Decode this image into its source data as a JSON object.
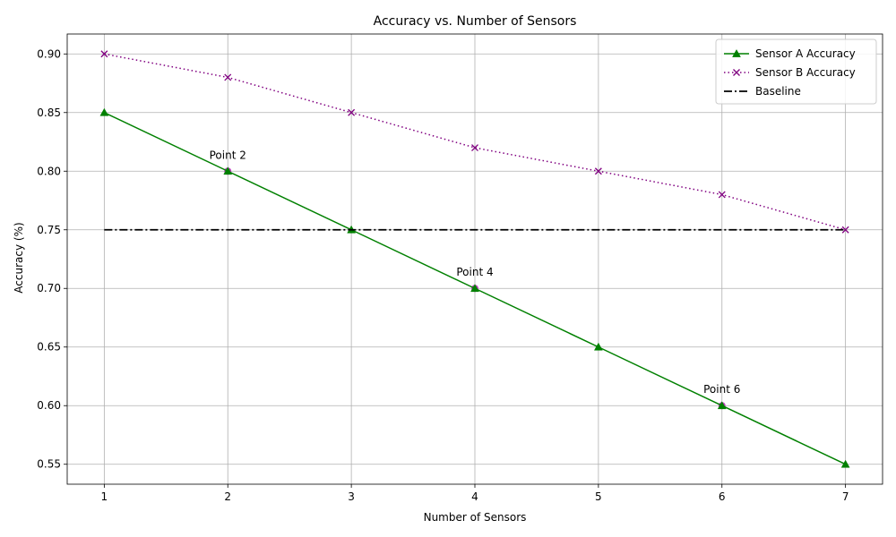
{
  "chart_data": {
    "type": "line",
    "title": "Accuracy vs. Number of Sensors",
    "xlabel": "Number of Sensors",
    "ylabel": "Accuracy (%)",
    "x": [
      1,
      2,
      3,
      4,
      5,
      6,
      7
    ],
    "xlim": [
      0.7,
      7.3
    ],
    "ylim": [
      0.533,
      0.917
    ],
    "xticks": [
      1,
      2,
      3,
      4,
      5,
      6,
      7
    ],
    "yticks": [
      0.55,
      0.6,
      0.65,
      0.7,
      0.75,
      0.8,
      0.85,
      0.9
    ],
    "ytick_labels": [
      "0.55",
      "0.60",
      "0.65",
      "0.70",
      "0.75",
      "0.80",
      "0.85",
      "0.90"
    ],
    "grid": true,
    "legend_position": "top-right",
    "series": [
      {
        "name": "Sensor A Accuracy",
        "values": [
          0.85,
          0.8,
          0.75,
          0.7,
          0.65,
          0.6,
          0.55
        ],
        "color": "#008000",
        "linestyle": "solid",
        "marker": "triangle-up"
      },
      {
        "name": "Sensor B Accuracy",
        "values": [
          0.9,
          0.88,
          0.85,
          0.82,
          0.8,
          0.78,
          0.75
        ],
        "color": "#800080",
        "linestyle": "dotted",
        "marker": "x"
      },
      {
        "name": "Baseline",
        "values": [
          0.75,
          0.75,
          0.75,
          0.75,
          0.75,
          0.75,
          0.75
        ],
        "color": "#000000",
        "linestyle": "dashdot",
        "marker": "none"
      }
    ],
    "highlight_points": [
      {
        "x": 2,
        "y": 0.8,
        "color": "#bf3fbf"
      },
      {
        "x": 4,
        "y": 0.7,
        "color": "#bf3fbf"
      },
      {
        "x": 6,
        "y": 0.6,
        "color": "#bf3fbf"
      }
    ],
    "annotations": [
      {
        "text": "Point 2",
        "x": 2,
        "y": 0.8
      },
      {
        "text": "Point 4",
        "x": 4,
        "y": 0.7
      },
      {
        "text": "Point 6",
        "x": 6,
        "y": 0.6
      }
    ]
  }
}
